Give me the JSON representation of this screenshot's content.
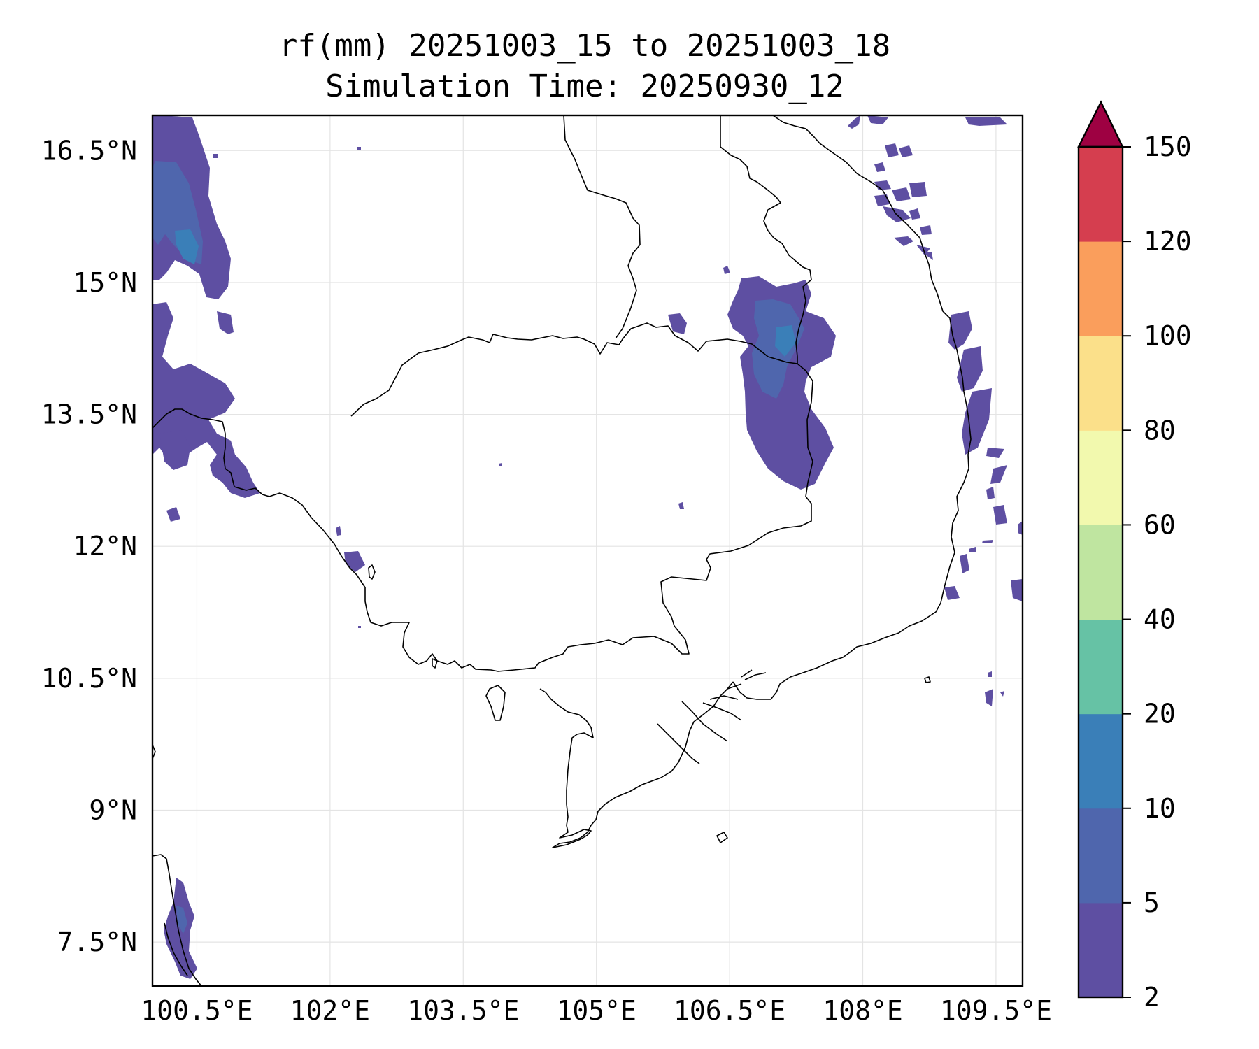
{
  "title_line1": "rf(mm) 20251003_15 to 20251003_18",
  "title_line2": "Simulation Time: 20250930_12",
  "map": {
    "lon_range": [
      100.0,
      109.8
    ],
    "lat_range": [
      7.0,
      16.9
    ],
    "lon_ticks": [
      {
        "value": 100.5,
        "label": "100.5°E"
      },
      {
        "value": 102.0,
        "label": "102°E"
      },
      {
        "value": 103.5,
        "label": "103.5°E"
      },
      {
        "value": 105.0,
        "label": "105°E"
      },
      {
        "value": 106.5,
        "label": "106.5°E"
      },
      {
        "value": 108.0,
        "label": "108°E"
      },
      {
        "value": 109.5,
        "label": "109.5°E"
      }
    ],
    "lat_ticks": [
      {
        "value": 16.5,
        "label": "16.5°N"
      },
      {
        "value": 15.0,
        "label": "15°N"
      },
      {
        "value": 13.5,
        "label": "13.5°N"
      },
      {
        "value": 12.0,
        "label": "12°N"
      },
      {
        "value": 10.5,
        "label": "10.5°N"
      },
      {
        "value": 9.0,
        "label": "9°N"
      },
      {
        "value": 7.5,
        "label": "7.5°N"
      }
    ]
  },
  "colorbar": {
    "levels": [
      "2",
      "5",
      "10",
      "20",
      "40",
      "60",
      "80",
      "100",
      "120",
      "150"
    ],
    "colors": [
      "#5e4fa2",
      "#4f66ad",
      "#3a7fb8",
      "#66c2a5",
      "#bfe5a0",
      "#f2f9ae",
      "#fbe08a",
      "#fa9e5c",
      "#d53e4f"
    ],
    "extend_color": "#9e0142"
  },
  "colors": {
    "rain_light": "#5e4fa2",
    "rain_mid": "#4f66ad",
    "rain_heavy": "#3a7fb8"
  }
}
